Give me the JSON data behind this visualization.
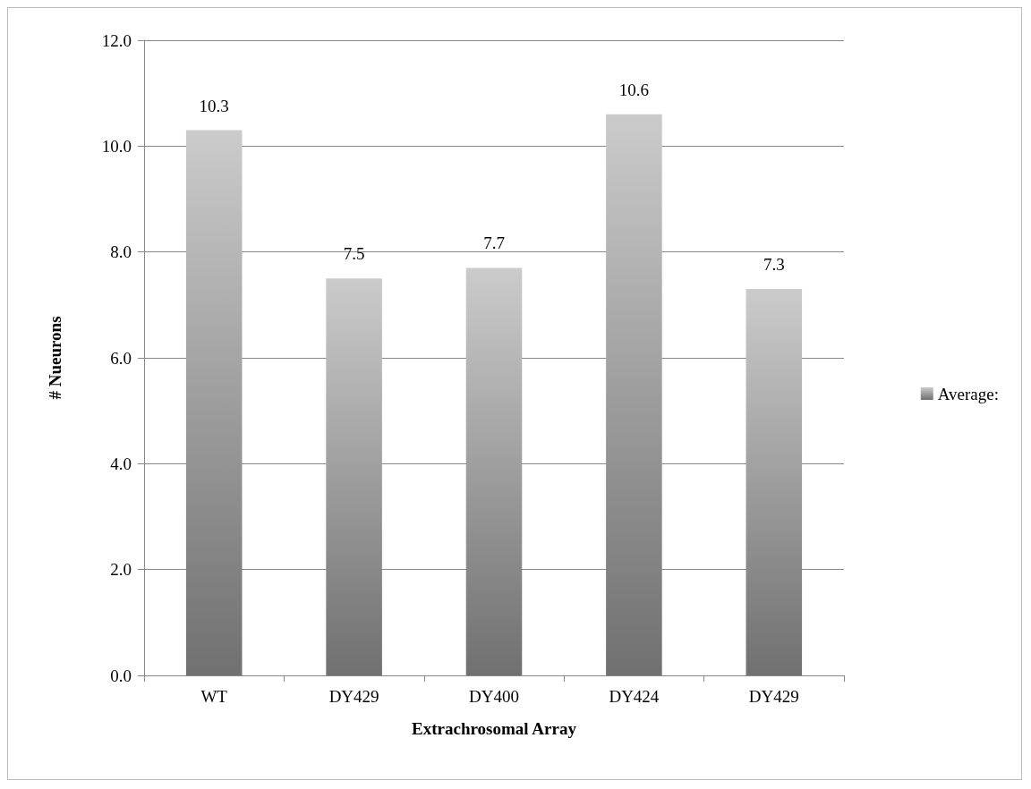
{
  "chart_data": {
    "type": "bar",
    "xlabel": "Extrachrosomal Array",
    "ylabel": "# Nueurons",
    "categories": [
      "WT",
      "DY429",
      "DY400",
      "DY424",
      "DY429"
    ],
    "series": [
      {
        "name": "Average:",
        "color": "#a0a0a0",
        "values": [
          10.3,
          7.5,
          7.7,
          10.6,
          7.3
        ]
      }
    ],
    "ylim": [
      0,
      12
    ],
    "yticks": [
      {
        "value": 0,
        "label": "0.0"
      },
      {
        "value": 2,
        "label": "2.0"
      },
      {
        "value": 4,
        "label": "4.0"
      },
      {
        "value": 6,
        "label": "6.0"
      },
      {
        "value": 8,
        "label": "8.0"
      },
      {
        "value": 10,
        "label": "10.0"
      },
      {
        "value": 12,
        "label": "12.0"
      }
    ],
    "grid": "y",
    "legend": "right",
    "data_labels": true
  }
}
